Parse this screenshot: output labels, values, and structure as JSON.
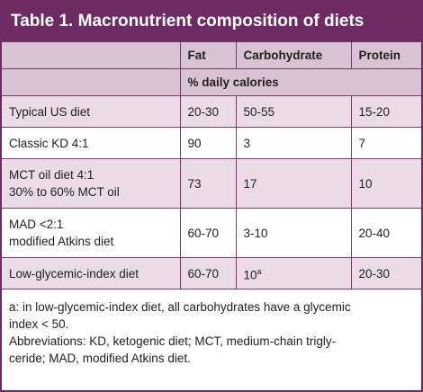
{
  "title": "Table 1. Macronutrient composition of diets",
  "columns": [
    "Fat",
    "Carbohydrate",
    "Protein"
  ],
  "subheader": "% daily calories",
  "rows": [
    {
      "diet": [
        "Typical US diet"
      ],
      "fat": "20-30",
      "carbohydrate": "50-55",
      "protein": "15-20"
    },
    {
      "diet": [
        "Classic KD 4:1"
      ],
      "fat": "90",
      "carbohydrate": "3",
      "protein": "7"
    },
    {
      "diet": [
        "MCT oil diet 4:1",
        "30% to 60% MCT oil"
      ],
      "fat": "73",
      "carbohydrate": "17",
      "protein": "10"
    },
    {
      "diet": [
        "MAD <2:1",
        "modified Atkins diet"
      ],
      "fat": "60-70",
      "carbohydrate": "3-10",
      "protein": "20-40"
    },
    {
      "diet": [
        "Low-glycemic-index diet"
      ],
      "fat": "60-70",
      "carbohydrate": "10",
      "carbohydrate_note": "a",
      "protein": "20-30"
    }
  ],
  "footnotes": [
    [
      "a: in low-glycemic-index diet, all carbohydrates have a glycemic",
      "index < 50."
    ],
    [
      "Abbreviations: KD, ketogenic diet; MCT, medium-chain trigly-",
      "ceride; MAD, modified Atkins diet."
    ]
  ]
}
